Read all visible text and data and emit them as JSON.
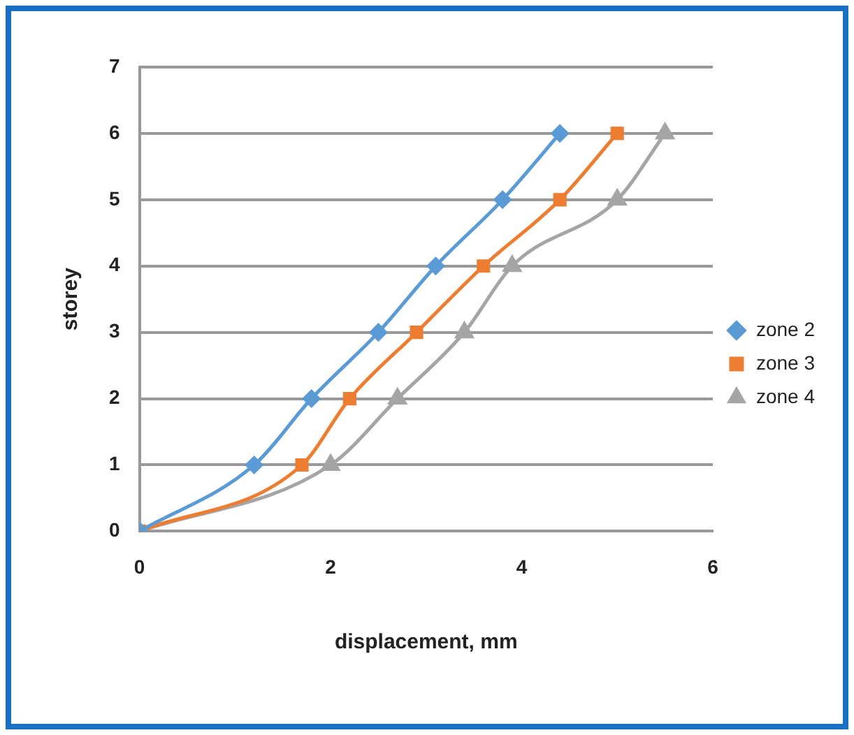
{
  "chart_data": {
    "type": "line",
    "xlabel": "displacement, mm",
    "ylabel": "storey",
    "xlim": [
      0,
      6
    ],
    "xticks": [
      0,
      2,
      4,
      6
    ],
    "ylim": [
      0,
      7
    ],
    "yticks": [
      0,
      1,
      2,
      3,
      4,
      5,
      6,
      7
    ],
    "grid": "y",
    "legend": "right",
    "series": [
      {
        "name": "zone 2",
        "color": "#5b9bd5",
        "marker": "diamond",
        "x": [
          0,
          1.2,
          1.8,
          2.5,
          3.1,
          3.8,
          4.4
        ],
        "values": [
          0,
          1,
          2,
          3,
          4,
          5,
          6
        ]
      },
      {
        "name": "zone 3",
        "color": "#ed7d31",
        "marker": "square",
        "x": [
          0,
          1.7,
          2.2,
          2.9,
          3.6,
          4.4,
          5.0
        ],
        "values": [
          0,
          1,
          2,
          3,
          4,
          5,
          6
        ]
      },
      {
        "name": "zone 4",
        "color": "#a5a5a5",
        "marker": "triangle",
        "x": [
          0,
          2.0,
          2.7,
          3.4,
          3.9,
          5.0,
          5.5
        ],
        "values": [
          0,
          1,
          2,
          3,
          4,
          5,
          6
        ]
      }
    ]
  }
}
